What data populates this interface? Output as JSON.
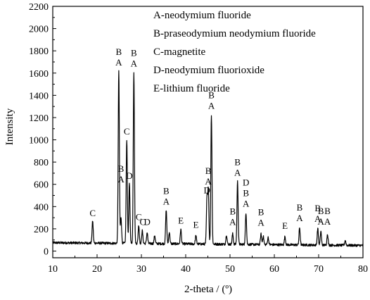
{
  "chart_data": {
    "type": "line",
    "title": "",
    "xlabel": "2-theta / (º)",
    "ylabel": "Intensity",
    "xlim": [
      10,
      80
    ],
    "ylim": [
      -60,
      2200
    ],
    "xticks": [
      10,
      20,
      30,
      40,
      50,
      60,
      70,
      80
    ],
    "yticks": [
      0,
      200,
      400,
      600,
      800,
      1000,
      1200,
      1400,
      1600,
      1800,
      2000,
      2200
    ],
    "grid": false,
    "legend_position": "top-right",
    "legend": [
      "A-neodymium fluoride",
      "B-praseodymium neodymium fluoride",
      "C-magnetite",
      "D-neodymium fluorioxide",
      "E-lithium fluoride"
    ],
    "series": [
      {
        "color": "#000000",
        "baseline": 75,
        "peaks": [
          {
            "x": 19.0,
            "y": 275
          },
          {
            "x": 24.9,
            "y": 1630
          },
          {
            "x": 25.4,
            "y": 310
          },
          {
            "x": 26.7,
            "y": 1010
          },
          {
            "x": 27.3,
            "y": 610
          },
          {
            "x": 28.3,
            "y": 1620
          },
          {
            "x": 29.4,
            "y": 240
          },
          {
            "x": 30.2,
            "y": 190
          },
          {
            "x": 31.3,
            "y": 175
          },
          {
            "x": 33.0,
            "y": 150
          },
          {
            "x": 35.6,
            "y": 380
          },
          {
            "x": 36.3,
            "y": 180
          },
          {
            "x": 38.9,
            "y": 205
          },
          {
            "x": 42.3,
            "y": 150
          },
          {
            "x": 44.8,
            "y": 480
          },
          {
            "x": 45.1,
            "y": 560
          },
          {
            "x": 45.8,
            "y": 1240
          },
          {
            "x": 49.2,
            "y": 160
          },
          {
            "x": 50.6,
            "y": 170
          },
          {
            "x": 51.7,
            "y": 640
          },
          {
            "x": 53.6,
            "y": 360
          },
          {
            "x": 57.0,
            "y": 170
          },
          {
            "x": 57.5,
            "y": 150
          },
          {
            "x": 58.6,
            "y": 140
          },
          {
            "x": 62.4,
            "y": 150
          },
          {
            "x": 65.7,
            "y": 230
          },
          {
            "x": 69.8,
            "y": 225
          },
          {
            "x": 70.5,
            "y": 200
          },
          {
            "x": 72.0,
            "y": 175
          },
          {
            "x": 76.0,
            "y": 120
          }
        ]
      }
    ],
    "peak_labels": [
      {
        "x": 19.0,
        "y": 275,
        "text": [
          "C"
        ]
      },
      {
        "x": 24.9,
        "y": 1630,
        "text": [
          "B",
          "A"
        ]
      },
      {
        "x": 25.4,
        "y": 580,
        "text": [
          "B",
          "A"
        ]
      },
      {
        "x": 26.7,
        "y": 1010,
        "text": [
          "C"
        ]
      },
      {
        "x": 27.3,
        "y": 610,
        "text": [
          "D"
        ]
      },
      {
        "x": 28.3,
        "y": 1620,
        "text": [
          "B",
          "A"
        ]
      },
      {
        "x": 29.4,
        "y": 240,
        "text": [
          "C"
        ]
      },
      {
        "x": 30.3,
        "y": 195,
        "text": [
          "C"
        ]
      },
      {
        "x": 31.3,
        "y": 195,
        "text": [
          "D"
        ]
      },
      {
        "x": 35.6,
        "y": 380,
        "text": [
          "B",
          "A"
        ]
      },
      {
        "x": 38.9,
        "y": 210,
        "text": [
          "E"
        ]
      },
      {
        "x": 42.3,
        "y": 170,
        "text": [
          "E"
        ]
      },
      {
        "x": 44.8,
        "y": 480,
        "text": [
          "D"
        ]
      },
      {
        "x": 45.1,
        "y": 560,
        "text": [
          "B",
          "A"
        ]
      },
      {
        "x": 45.8,
        "y": 1240,
        "text": [
          "B",
          "A"
        ]
      },
      {
        "x": 50.6,
        "y": 195,
        "text": [
          "B",
          "A"
        ]
      },
      {
        "x": 51.7,
        "y": 640,
        "text": [
          "B",
          "A"
        ]
      },
      {
        "x": 53.6,
        "y": 360,
        "text": [
          "D",
          "B",
          "A"
        ]
      },
      {
        "x": 57.0,
        "y": 190,
        "text": [
          "B",
          "A"
        ]
      },
      {
        "x": 62.4,
        "y": 160,
        "text": [
          "E"
        ]
      },
      {
        "x": 65.7,
        "y": 230,
        "text": [
          "B",
          "A"
        ]
      },
      {
        "x": 69.8,
        "y": 225,
        "text": [
          "B",
          "A"
        ]
      },
      {
        "x": 70.5,
        "y": 200,
        "text": [
          "B",
          "A"
        ]
      },
      {
        "x": 72.0,
        "y": 200,
        "text": [
          "B",
          "A"
        ]
      }
    ]
  }
}
